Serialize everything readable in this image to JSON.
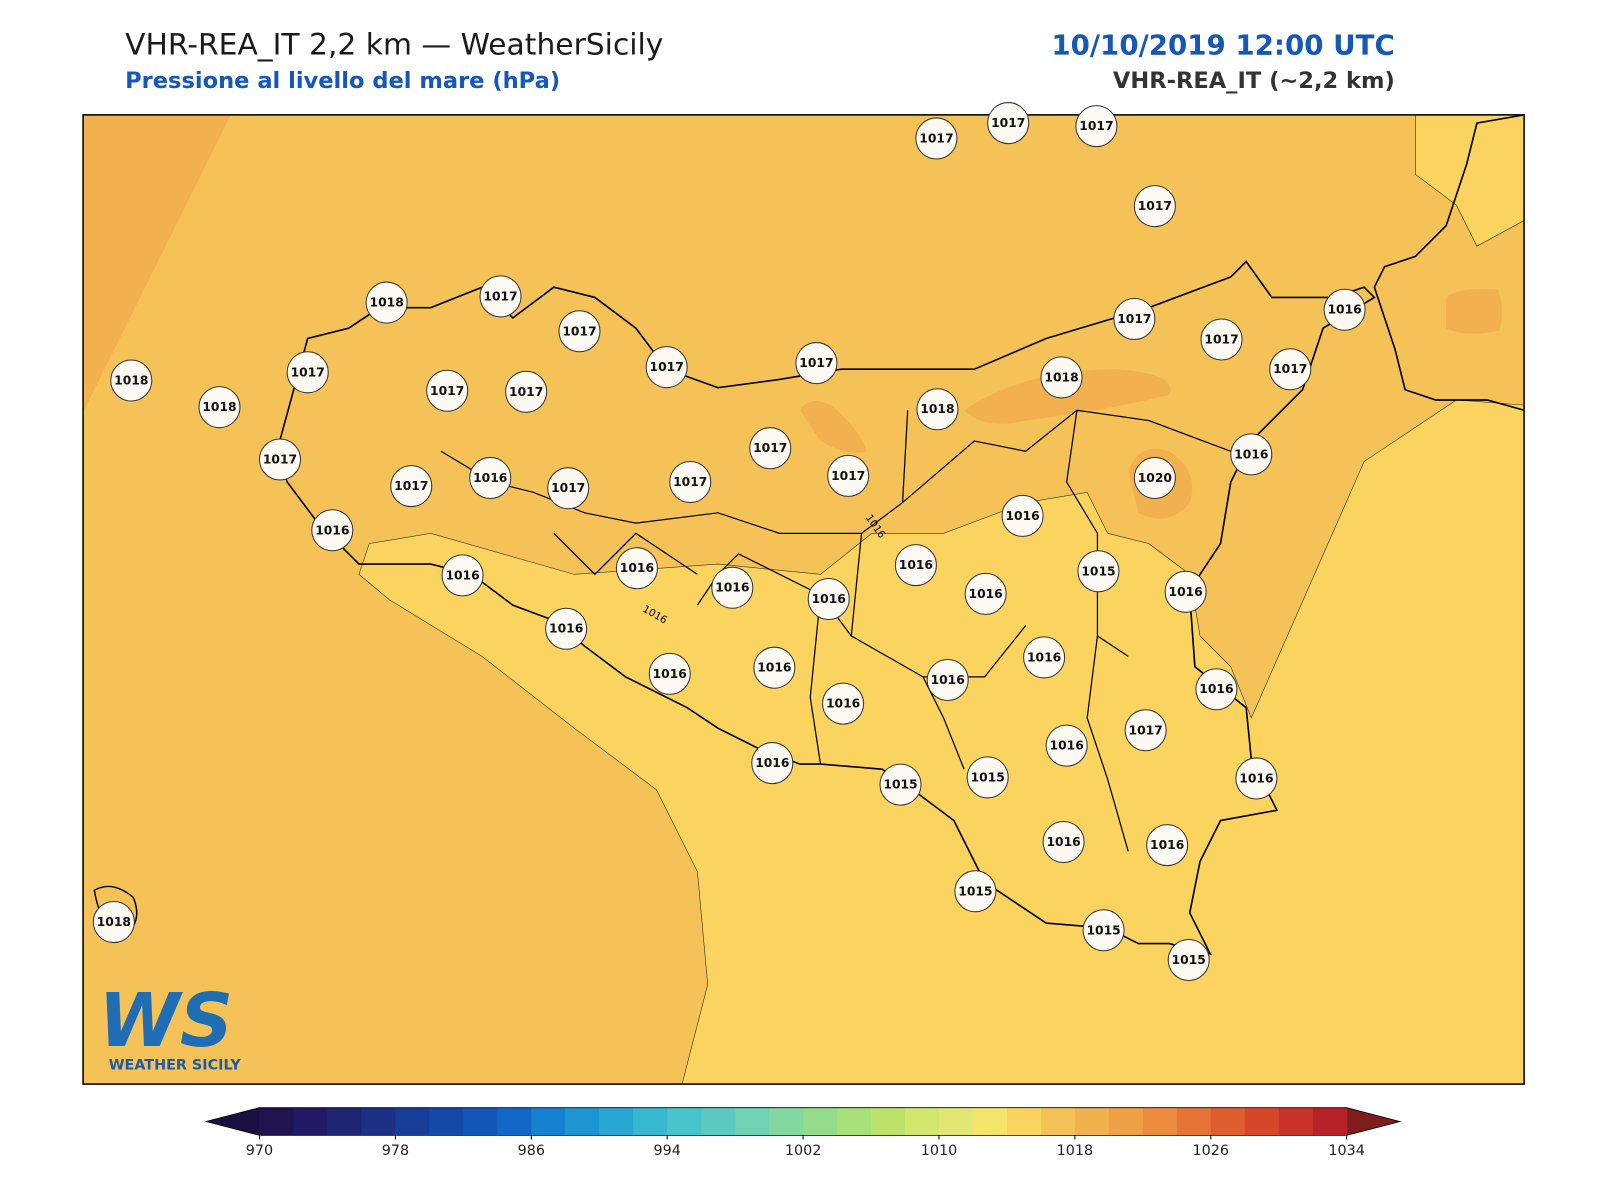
{
  "header": {
    "title": "VHR-REA_IT 2,2 km — WeatherSicily",
    "subtitle": "Pressione al livello del mare (hPa)",
    "date": "10/10/2019 12:00 UTC",
    "model": "VHR-REA_IT (~2,2 km)"
  },
  "stations": [
    1017,
    1017,
    1017,
    1017,
    1018,
    1017,
    1017,
    1018,
    1017,
    1018,
    1017,
    1017,
    1017,
    1017,
    1017,
    1017,
    1016,
    1017,
    1018,
    1018,
    1017,
    1016,
    1017,
    1017,
    1016,
    1017,
    1017,
    1017,
    1020,
    1016,
    1016,
    1016,
    1015,
    1016,
    1016,
    1016,
    1016,
    1016,
    1016,
    1016,
    1016,
    1016,
    1016,
    1016,
    1016,
    1016,
    1017,
    1016,
    1016,
    1015,
    1015,
    1016,
    1016,
    1016,
    1015,
    1015,
    1015,
    1018
  ],
  "contour_labels": [
    1016,
    1016
  ],
  "logo": {
    "mark": "WS",
    "name": "WEATHER SICILY"
  },
  "colorbar": {
    "ticks": [
      970,
      978,
      986,
      994,
      1002,
      1010,
      1018,
      1026,
      1034
    ],
    "colors": [
      "#1f1350",
      "#221a66",
      "#1f2575",
      "#1c3086",
      "#173d98",
      "#1449a8",
      "#1257b8",
      "#1167c6",
      "#1480cf",
      "#1e95d3",
      "#2aa6d4",
      "#38b8d0",
      "#48c4cb",
      "#5ccac0",
      "#6fd2b2",
      "#82d89f",
      "#95dc8a",
      "#a8e07a",
      "#bde36a",
      "#d1e66c",
      "#e2e672",
      "#f5e46a",
      "#fad45f",
      "#f5c258",
      "#f3b04e",
      "#f0a046",
      "#ec8c3c",
      "#e67434",
      "#df5e2e",
      "#d6472a",
      "#c93329",
      "#b72228"
    ],
    "under_color": "#1a0f40",
    "over_color": "#7f1d1d"
  }
}
